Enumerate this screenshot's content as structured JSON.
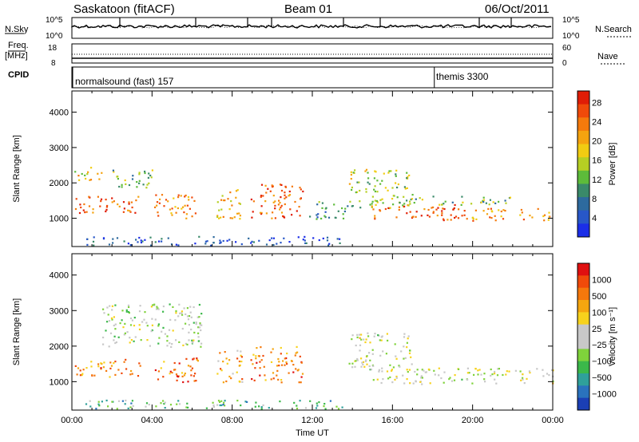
{
  "header": {
    "station": "Saskatoon (fitACF)",
    "beam": "Beam 01",
    "date": "06/Oct/2011"
  },
  "nsky_panel": {
    "left_label": "N.Sky",
    "right_label": "N.Search",
    "left_ticks": [
      "10^5",
      "10^0"
    ],
    "right_ticks": [
      "10^5",
      "10^0"
    ]
  },
  "freq_panel": {
    "left_label": "Freq.",
    "left_unit": "[MHz]",
    "right_label": "Nave",
    "left_ticks": [
      "18",
      "8"
    ],
    "right_ticks": [
      "60",
      "0"
    ]
  },
  "cpid_panel": {
    "label": "CPID",
    "programs": [
      {
        "name": "normalsound (fast) 157",
        "start_hour": 0.0
      },
      {
        "name": "themis 3300",
        "start_hour": 18.05
      }
    ]
  },
  "chart_data": [
    {
      "type": "heatmap",
      "parameter": "power",
      "ylabel": "Slant Range [km]",
      "ylim": [
        200,
        4600
      ],
      "yticks": [
        1000,
        2000,
        3000,
        4000
      ],
      "xlim": [
        0,
        24
      ],
      "colorbar": {
        "label": "Power [dB]",
        "ticks": [
          "4",
          "8",
          "12",
          "16",
          "20",
          "24",
          "28"
        ],
        "colors": [
          "#1b2ee8",
          "#2857c8",
          "#2d6a9e",
          "#3a8a6a",
          "#5dbb3a",
          "#b6cf23",
          "#f1cc12",
          "#f5a30f",
          "#f57a0c",
          "#f04a0a",
          "#e01d06"
        ]
      },
      "regions": [
        {
          "t0": 0.1,
          "t1": 3.4,
          "r0": 1150,
          "r1": 1650,
          "level": 0.85
        },
        {
          "t0": 0.1,
          "t1": 1.5,
          "r0": 2100,
          "r1": 2500,
          "level": 0.6
        },
        {
          "t0": 2.0,
          "t1": 4.0,
          "r0": 1800,
          "r1": 2400,
          "level": 0.4
        },
        {
          "t0": 4.1,
          "t1": 6.3,
          "r0": 1000,
          "r1": 1700,
          "level": 0.75
        },
        {
          "t0": 7.2,
          "t1": 8.5,
          "r0": 1000,
          "r1": 1900,
          "level": 0.65
        },
        {
          "t0": 8.9,
          "t1": 11.5,
          "r0": 1000,
          "r1": 2000,
          "level": 0.85
        },
        {
          "t0": 11.7,
          "t1": 13.8,
          "r0": 1000,
          "r1": 1500,
          "level": 0.3
        },
        {
          "t0": 13.8,
          "t1": 17.0,
          "r0": 1300,
          "r1": 2400,
          "level": 0.5
        },
        {
          "t0": 15.0,
          "t1": 19.5,
          "r0": 950,
          "r1": 1400,
          "level": 0.85
        },
        {
          "t0": 19.5,
          "t1": 24.0,
          "r0": 950,
          "r1": 1300,
          "level": 0.7
        },
        {
          "t0": 16.5,
          "t1": 22.0,
          "r0": 1400,
          "r1": 1650,
          "level": 0.4
        },
        {
          "t0": 0.5,
          "t1": 13.5,
          "r0": 250,
          "r1": 500,
          "level": 0.15
        }
      ]
    },
    {
      "type": "heatmap",
      "parameter": "velocity",
      "ylabel": "Slant Range [km]",
      "ylim": [
        200,
        4600
      ],
      "yticks": [
        1000,
        2000,
        3000,
        4000
      ],
      "xlim": [
        0,
        24
      ],
      "xticks": [
        "00:00",
        "04:00",
        "08:00",
        "12:00",
        "16:00",
        "20:00",
        "00:00"
      ],
      "xlabel": "Time UT",
      "colorbar": {
        "label": "Velocity [m s⁻¹]",
        "ticks": [
          "1000",
          "500",
          "100",
          "25",
          "−25",
          "−100",
          "−500",
          "−1000"
        ],
        "colors": [
          "#1b3fb5",
          "#2a72bd",
          "#2fa09a",
          "#3bb84a",
          "#7fd23b",
          "#c8c8c8",
          "#c8c8c8",
          "#f7d21c",
          "#f5a60f",
          "#f5780c",
          "#f04a0a",
          "#e01010"
        ]
      },
      "regions": [
        {
          "t0": 0.1,
          "t1": 3.4,
          "r0": 1150,
          "r1": 1650,
          "level": 0.75
        },
        {
          "t0": 1.5,
          "t1": 6.5,
          "r0": 2000,
          "r1": 3200,
          "level": 0.45
        },
        {
          "t0": 4.1,
          "t1": 6.3,
          "r0": 1000,
          "r1": 1700,
          "level": 0.8
        },
        {
          "t0": 7.2,
          "t1": 8.5,
          "r0": 1000,
          "r1": 1900,
          "level": 0.7
        },
        {
          "t0": 8.9,
          "t1": 11.5,
          "r0": 1000,
          "r1": 2000,
          "level": 0.78
        },
        {
          "t0": 13.8,
          "t1": 17.0,
          "r0": 1300,
          "r1": 2400,
          "level": 0.5
        },
        {
          "t0": 15.0,
          "t1": 24.0,
          "r0": 950,
          "r1": 1400,
          "level": 0.5
        },
        {
          "t0": 0.5,
          "t1": 13.5,
          "r0": 250,
          "r1": 500,
          "level": 0.3
        }
      ]
    }
  ]
}
